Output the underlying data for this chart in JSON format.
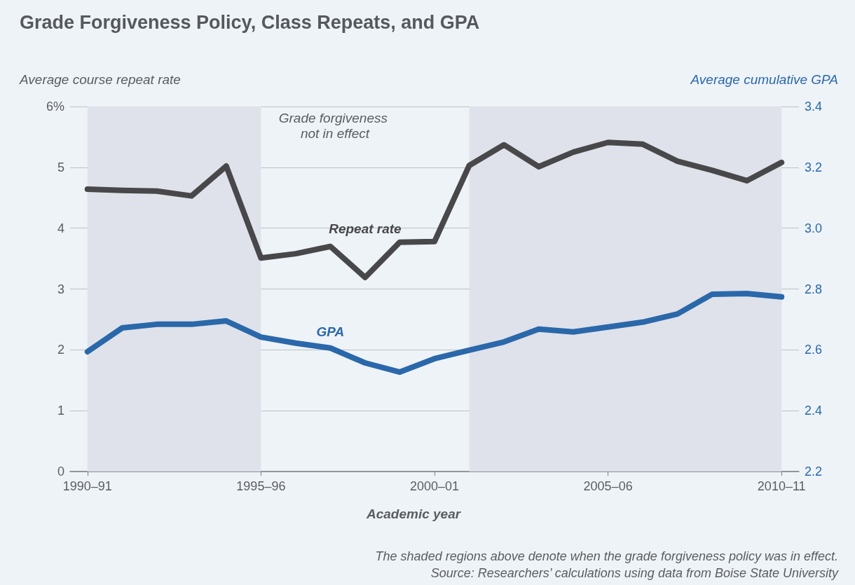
{
  "chart_data": {
    "type": "line",
    "title": "Grade Forgiveness Policy, Class Repeats, and GPA",
    "xlabel": "Academic year",
    "ylabel": "Average course repeat rate",
    "y2label": "Average cumulative GPA",
    "categories": [
      "1990–91",
      null,
      null,
      null,
      null,
      "1995–96",
      null,
      null,
      null,
      null,
      "2000–01",
      null,
      null,
      null,
      null,
      "2005–06",
      null,
      null,
      null,
      null,
      "2010–11"
    ],
    "series": [
      {
        "name": "Repeat rate",
        "color": "#48484b",
        "values": [
          4.64,
          4.62,
          4.61,
          4.53,
          5.02,
          3.51,
          3.58,
          3.7,
          3.19,
          3.77,
          3.78,
          5.03,
          5.37,
          5.01,
          5.25,
          5.41,
          5.38,
          5.1,
          4.95,
          4.78,
          5.08
        ]
      },
      {
        "name": "GPA",
        "color": "#2a68aa",
        "axis": "y2",
        "values": [
          2.594,
          2.672,
          2.684,
          2.684,
          2.695,
          2.642,
          2.622,
          2.606,
          2.557,
          2.527,
          2.571,
          2.599,
          2.626,
          2.668,
          2.659,
          2.675,
          2.691,
          2.718,
          2.783,
          2.785,
          2.774
        ]
      }
    ],
    "ylim": [
      0,
      6
    ],
    "yticks": [
      0,
      1,
      2,
      3,
      4,
      5,
      {
        "value": 6,
        "label": "6%"
      }
    ],
    "y2lim": [
      2.2,
      3.4
    ],
    "y2ticks": [
      2.2,
      2.4,
      2.6,
      2.8,
      {
        "value": 3,
        "label": "3.0"
      },
      3.2,
      3.4
    ],
    "annotations": [
      "Grade forgiveness not in effect",
      "The shaded regions above denote when the grade forgiveness policy was in effect.",
      "Source: Researchers’ calculations using data from Boise State University"
    ],
    "grid": "y",
    "legend": false,
    "marker": "none",
    "line_style": "solid"
  }
}
